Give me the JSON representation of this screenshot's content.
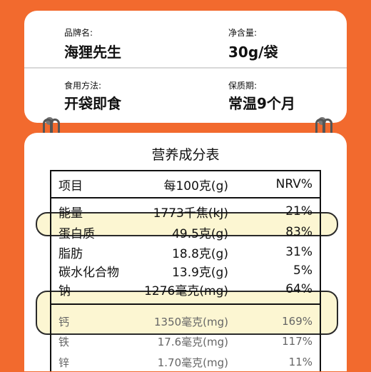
{
  "info": {
    "brand_label": "品牌名:",
    "brand_value": "海狸先生",
    "net_label": "净含量:",
    "net_value": "30g/袋",
    "usage_label": "食用方法:",
    "usage_value": "开袋即食",
    "shelf_label": "保质期:",
    "shelf_value": "常温9个月"
  },
  "nutrition": {
    "title": "营养成分表",
    "header": {
      "name": "项目",
      "amount": "每100克(g)",
      "nrv": "NRV%"
    },
    "rows": [
      {
        "name": "能量",
        "amount": "1773千焦(kJ)",
        "nrv": "21%"
      },
      {
        "name": "蛋白质",
        "amount": "49.5克(g)",
        "nrv": "83%"
      },
      {
        "name": "脂肪",
        "amount": "18.8克(g)",
        "nrv": "31%"
      },
      {
        "name": "碳水化合物",
        "amount": "13.9克(g)",
        "nrv": "5%"
      },
      {
        "name": "钠",
        "amount": "1276毫克(mg)",
        "nrv": "64%"
      },
      {
        "name": "钙",
        "amount": "1350毫克(mg)",
        "nrv": "169%"
      },
      {
        "name": "铁",
        "amount": "17.6毫克(mg)",
        "nrv": "117%"
      },
      {
        "name": "锌",
        "amount": "1.70毫克(mg)",
        "nrv": "11%"
      }
    ]
  },
  "colors": {
    "background": "#f26a2e",
    "card": "#ffffff",
    "highlight": "#fcf6d2"
  }
}
